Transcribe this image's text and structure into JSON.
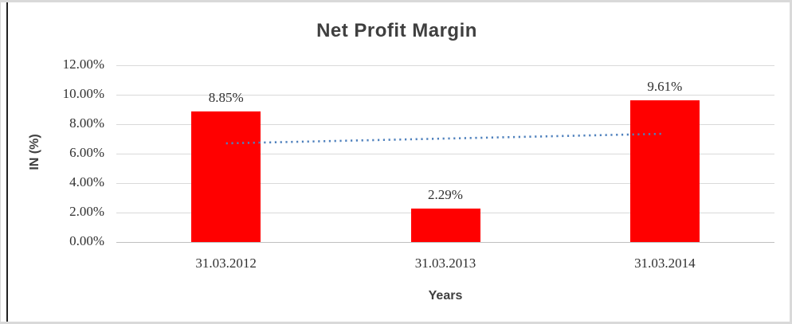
{
  "chart_data": {
    "type": "bar",
    "title": "Net Profit Margin",
    "xlabel": "Years",
    "ylabel": "IN (%)",
    "categories": [
      "31.03.2012",
      "31.03.2013",
      "31.03.2014"
    ],
    "values": [
      8.85,
      2.29,
      9.61
    ],
    "data_labels": [
      "8.85%",
      "2.29%",
      "9.61%"
    ],
    "y_ticks": [
      "12.00%",
      "10.00%",
      "8.00%",
      "6.00%",
      "4.00%",
      "2.00%",
      "0.00%"
    ],
    "ylim": [
      0,
      12
    ],
    "grid": true,
    "legend": "none",
    "bar_color": "#ff0000",
    "trendline": {
      "style": "dotted",
      "color": "#4f81bd",
      "start_value": 6.7,
      "end_value": 7.35
    },
    "colors": {
      "title_text": "#3f3f3f",
      "tick_text": "#303030",
      "gridline": "#d9d9d9",
      "axis_line": "#bfbfbf",
      "frame_border": "#d9d9d9",
      "cell_border": "#222222"
    }
  }
}
